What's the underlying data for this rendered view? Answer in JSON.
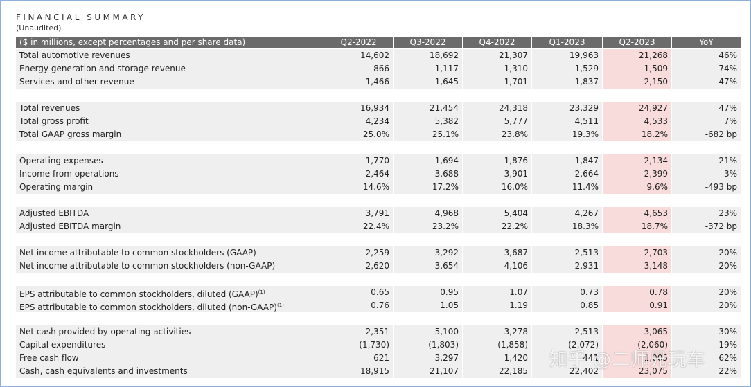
{
  "header": {
    "title": "FINANCIAL SUMMARY",
    "subtitle": "(Unaudited)"
  },
  "table": {
    "columns": [
      "($ in millions, except percentages and per share data)",
      "Q2-2022",
      "Q3-2022",
      "Q4-2022",
      "Q1-2023",
      "Q2-2023",
      "YoY"
    ],
    "groups": [
      [
        {
          "label": "Total automotive revenues",
          "values": [
            "14,602",
            "18,692",
            "21,307",
            "19,963",
            "21,268",
            "46%"
          ]
        },
        {
          "label": "Energy generation and storage revenue",
          "values": [
            "866",
            "1,117",
            "1,310",
            "1,529",
            "1,509",
            "74%"
          ]
        },
        {
          "label": "Services and other revenue",
          "values": [
            "1,466",
            "1,645",
            "1,701",
            "1,837",
            "2,150",
            "47%"
          ]
        }
      ],
      [
        {
          "label": "Total revenues",
          "values": [
            "16,934",
            "21,454",
            "24,318",
            "23,329",
            "24,927",
            "47%"
          ]
        },
        {
          "label": "Total gross profit",
          "values": [
            "4,234",
            "5,382",
            "5,777",
            "4,511",
            "4,533",
            "7%"
          ]
        },
        {
          "label": "Total GAAP gross margin",
          "values": [
            "25.0%",
            "25.1%",
            "23.8%",
            "19.3%",
            "18.2%",
            "-682 bp"
          ]
        }
      ],
      [
        {
          "label": "Operating expenses",
          "values": [
            "1,770",
            "1,694",
            "1,876",
            "1,847",
            "2,134",
            "21%"
          ]
        },
        {
          "label": "Income from operations",
          "values": [
            "2,464",
            "3,688",
            "3,901",
            "2,664",
            "2,399",
            "-3%"
          ]
        },
        {
          "label": "Operating margin",
          "values": [
            "14.6%",
            "17.2%",
            "16.0%",
            "11.4%",
            "9.6%",
            "-493 bp"
          ]
        }
      ],
      [
        {
          "label": "Adjusted EBITDA",
          "values": [
            "3,791",
            "4,968",
            "5,404",
            "4,267",
            "4,653",
            "23%"
          ]
        },
        {
          "label": "Adjusted EBITDA margin",
          "values": [
            "22.4%",
            "23.2%",
            "22.2%",
            "18.3%",
            "18.7%",
            "-372 bp"
          ]
        }
      ],
      [
        {
          "label": "Net income attributable to common stockholders (GAAP)",
          "values": [
            "2,259",
            "3,292",
            "3,687",
            "2,513",
            "2,703",
            "20%"
          ]
        },
        {
          "label": "Net income attributable to common stockholders (non-GAAP)",
          "values": [
            "2,620",
            "3,654",
            "4,106",
            "2,931",
            "3,148",
            "20%"
          ]
        }
      ],
      [
        {
          "label": "EPS attributable to common stockholders, diluted (GAAP)",
          "note": "(1)",
          "values": [
            "0.65",
            "0.95",
            "1.07",
            "0.73",
            "0.78",
            "20%"
          ]
        },
        {
          "label": "EPS attributable to common stockholders, diluted (non-GAAP)",
          "note": "(1)",
          "values": [
            "0.76",
            "1.05",
            "1.19",
            "0.85",
            "0.91",
            "20%"
          ]
        }
      ],
      [
        {
          "label": "Net cash provided by operating activities",
          "values": [
            "2,351",
            "5,100",
            "3,278",
            "2,513",
            "3,065",
            "30%"
          ]
        },
        {
          "label": "Capital expenditures",
          "values": [
            "(1,730)",
            "(1,803)",
            "(1,858)",
            "(2,072)",
            "(2,060)",
            "19%"
          ]
        },
        {
          "label": "Free cash flow",
          "values": [
            "621",
            "3,297",
            "1,420",
            "441",
            "1,005",
            "62%"
          ]
        },
        {
          "label": "Cash, cash equivalents and investments",
          "values": [
            "18,915",
            "21,107",
            "22,185",
            "22,402",
            "23,075",
            "22%"
          ]
        }
      ]
    ]
  },
  "watermark": "知乎 @二师兄玩车"
}
